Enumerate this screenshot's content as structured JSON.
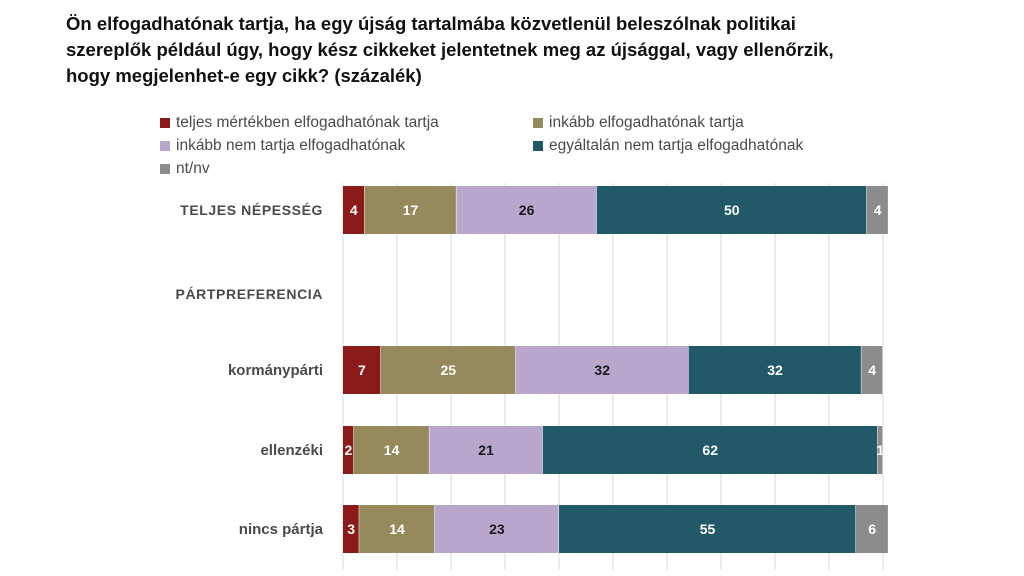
{
  "title": "Ön elfogadhatónak tartja, ha egy újság tartalmába közvetlenül beleszólnak politikai szereplők például úgy, hogy kész cikkeket jelentetnek meg az újsággal, vagy ellenőrzik, hogy megjelenhet-e egy cikk? (százalék)",
  "title_lines": [
    "Ön elfogadhatónak tartja, ha egy újság tartalmába közvetlenül beleszólnak politikai",
    "szereplők például úgy, hogy kész cikkeket jelentetnek meg az újsággal, vagy ellenőrzik,",
    "hogy megjelenhet-e egy cikk? (százalék)"
  ],
  "legend": [
    {
      "label": "teljes mértékben elfogadhatónak tartja",
      "color": "#8b1a1a"
    },
    {
      "label": "inkább elfogadhatónak tartja",
      "color": "#968a5c"
    },
    {
      "label": "inkább nem tartja elfogadhatónak",
      "color": "#b8a6cc"
    },
    {
      "label": "egyáltalán nem tartja elfogadhatónak",
      "color": "#215968"
    },
    {
      "label": "nt/nv",
      "color": "#8c8c8c"
    }
  ],
  "chart_data": {
    "type": "bar",
    "orientation": "horizontal",
    "stacked": true,
    "categories": [
      "TELJES NÉPESSÉG",
      "PÁRTPREFERENCIA",
      "kormánypárti",
      "ellenzéki",
      "nincs pártja"
    ],
    "series": [
      {
        "name": "teljes mértékben elfogadhatónak tartja",
        "color": "#8b1a1a",
        "values": [
          4,
          null,
          7,
          2,
          3
        ]
      },
      {
        "name": "inkább elfogadhatónak tartja",
        "color": "#968a5c",
        "values": [
          17,
          null,
          25,
          14,
          14
        ]
      },
      {
        "name": "inkább nem tartja elfogadhatónak",
        "color": "#b8a6cc",
        "values": [
          26,
          null,
          32,
          21,
          23
        ]
      },
      {
        "name": "egyáltalán nem tartja elfogadhatónak",
        "color": "#215968",
        "values": [
          50,
          null,
          32,
          62,
          55
        ]
      },
      {
        "name": "nt/nv",
        "color": "#8c8c8c",
        "values": [
          4,
          null,
          4,
          1,
          6
        ]
      }
    ],
    "grid": true,
    "legend_position": "top"
  }
}
